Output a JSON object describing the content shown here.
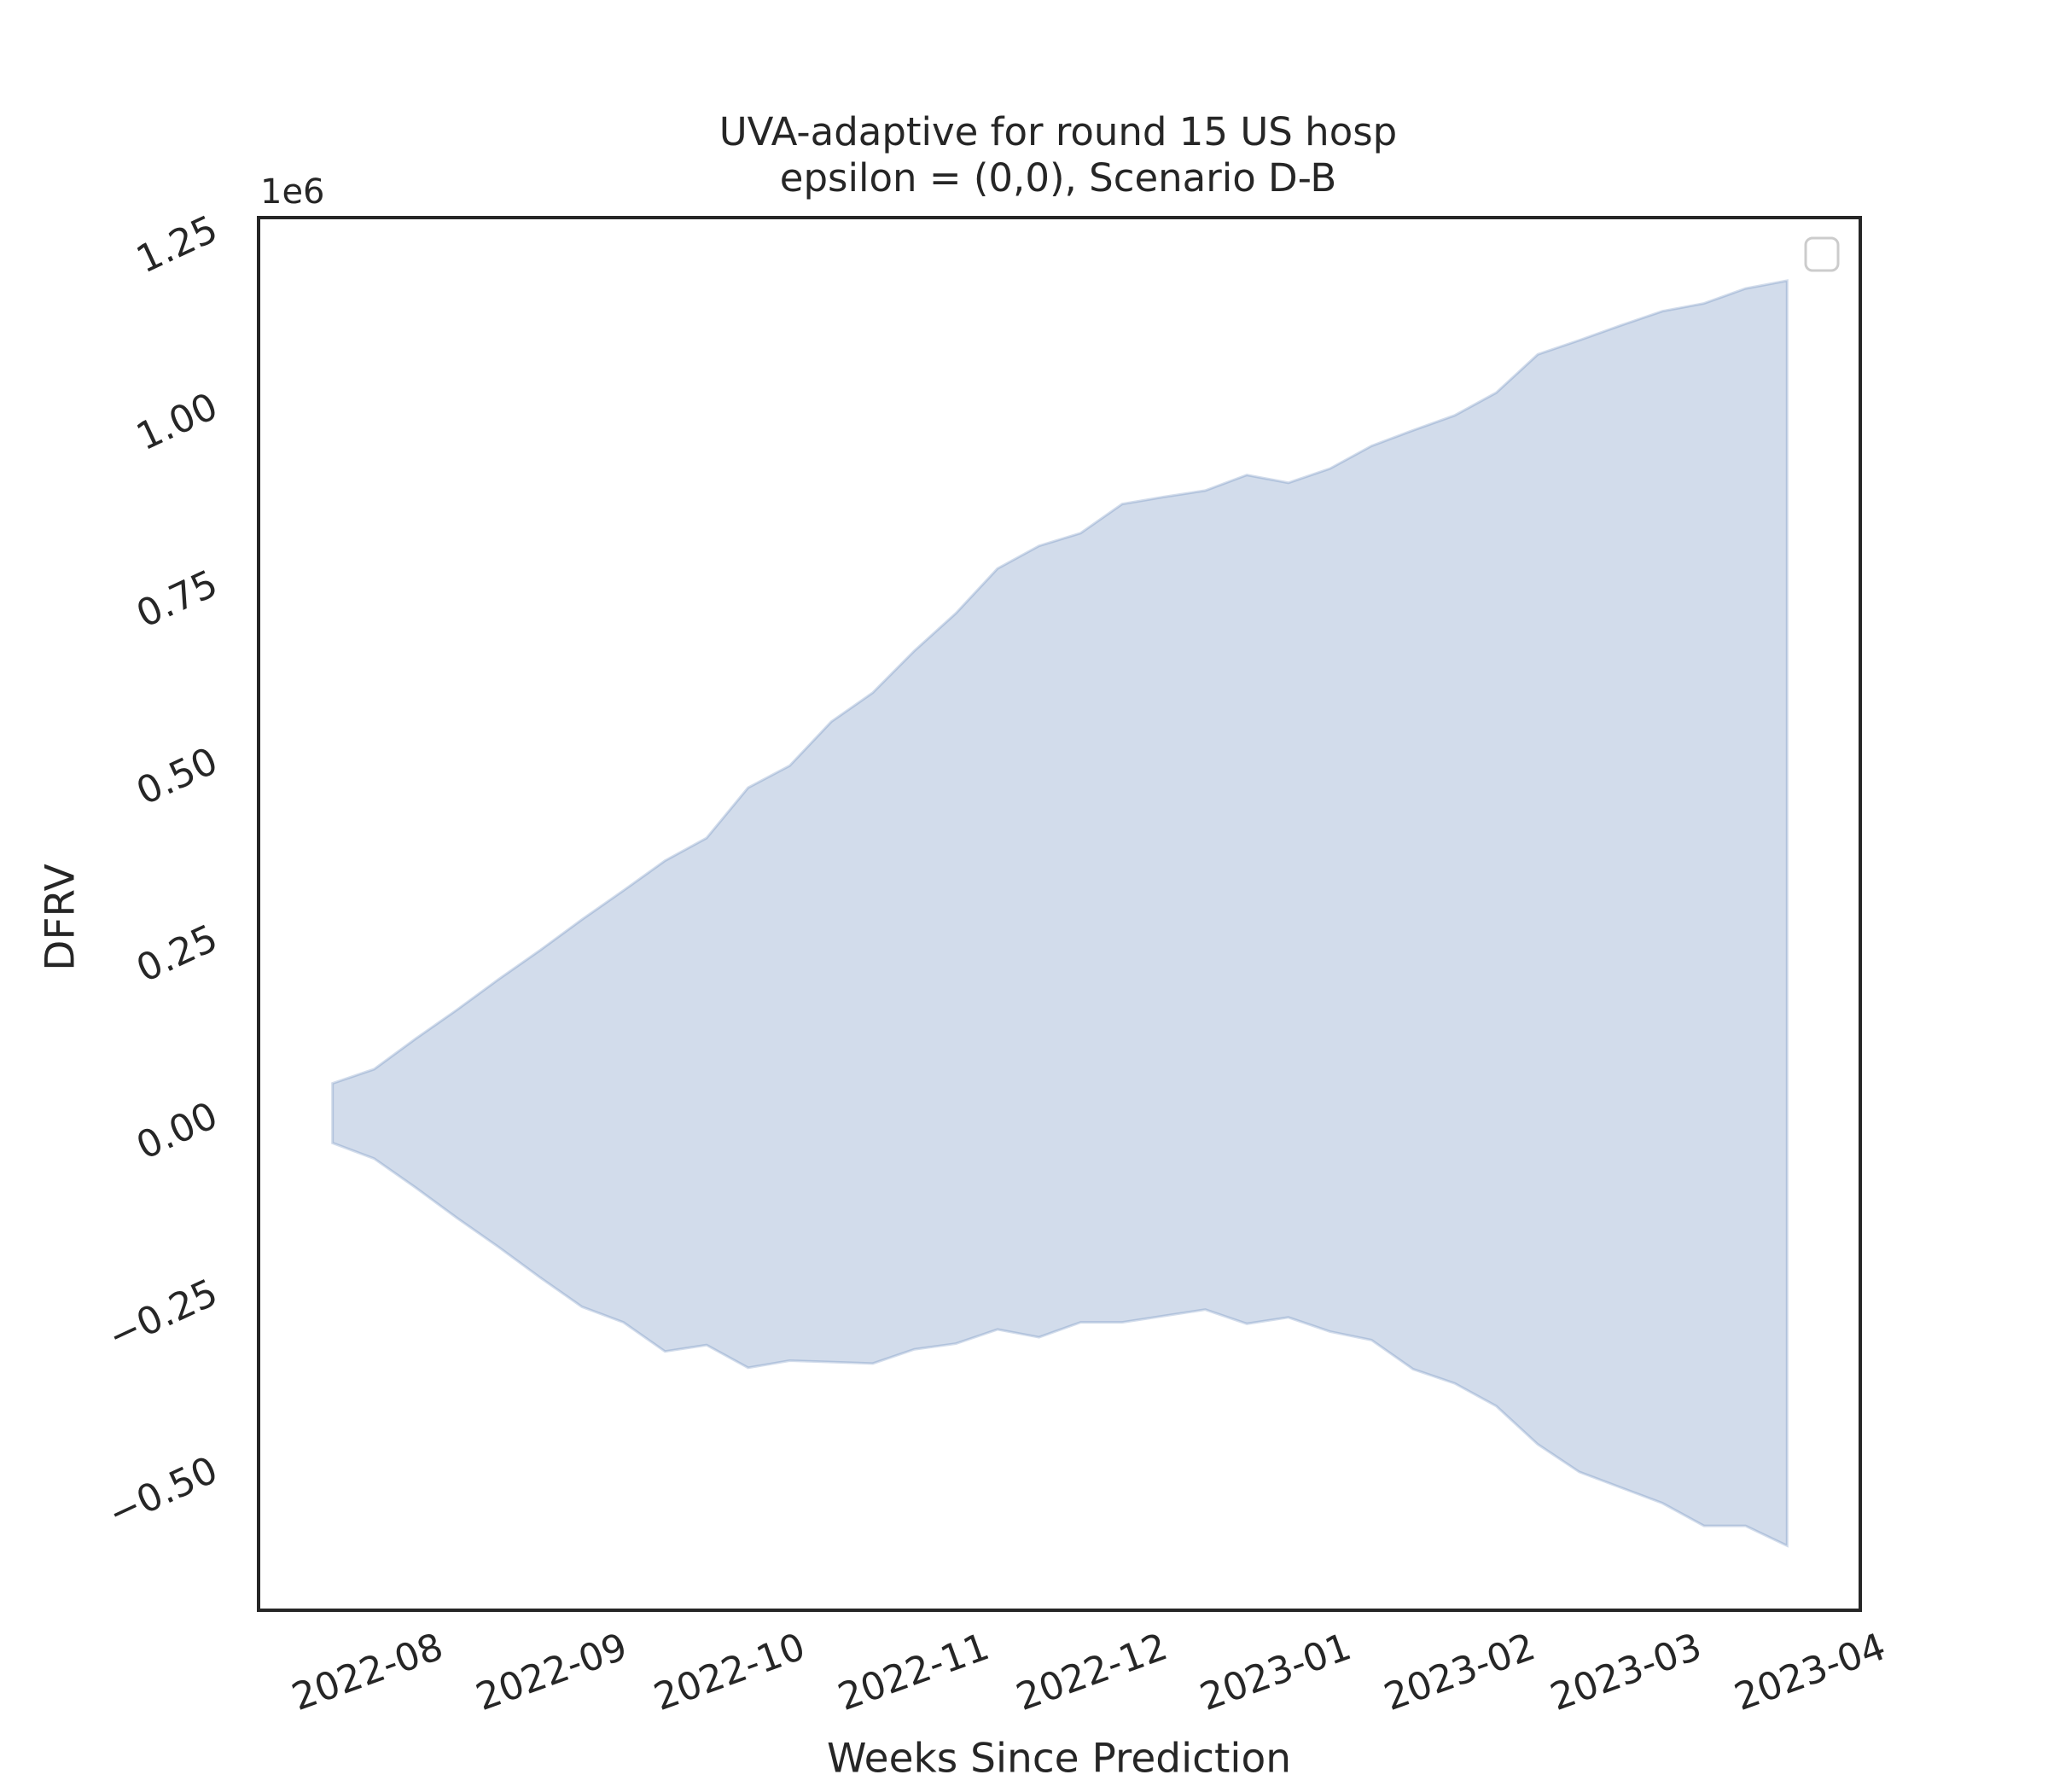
{
  "chart_data": {
    "type": "band",
    "title": "UVA-adaptive for round 15 US hosp",
    "subtitle": "epsilon = (0,0), Scenario D-B",
    "x_label": "Weeks Since Prediction",
    "y_label": "DFRV",
    "y_offset_label": "1e6",
    "color": "#4c72b0",
    "fill_alpha": 0.25,
    "legend": "upper right",
    "grid": false,
    "x": [
      0,
      1,
      2,
      3,
      4,
      5,
      6,
      7,
      8,
      9,
      10,
      11,
      12,
      13,
      14,
      15,
      16,
      17,
      18,
      19,
      20,
      21,
      22,
      23,
      24,
      25,
      26,
      27,
      28,
      29,
      30,
      31,
      32,
      33,
      34,
      35
    ],
    "upper": [
      45000,
      65000,
      108000,
      149000,
      192000,
      233000,
      276000,
      317000,
      359000,
      391000,
      462000,
      493000,
      555000,
      596000,
      655000,
      708000,
      771000,
      803000,
      821000,
      862000,
      872000,
      881000,
      903000,
      892000,
      912000,
      944000,
      966000,
      987000,
      1019000,
      1073000,
      1093000,
      1114000,
      1134000,
      1145000,
      1166000,
      1177000
    ],
    "lower": [
      -39000,
      -61000,
      -102000,
      -145000,
      -186000,
      -229000,
      -270000,
      -292000,
      -333000,
      -324000,
      -356000,
      -346000,
      -348000,
      -350000,
      -330000,
      -322000,
      -302000,
      -313000,
      -292000,
      -292000,
      -283000,
      -274000,
      -294000,
      -285000,
      -305000,
      -317000,
      -358000,
      -378000,
      -410000,
      -464000,
      -503000,
      -525000,
      -547000,
      -579000,
      -579000,
      -607000
    ],
    "xlim": [
      -1.78,
      36.76
    ],
    "xticks": [
      {
        "value": 0.86,
        "label": "2022-08"
      },
      {
        "value": 5.29,
        "label": "2022-09"
      },
      {
        "value": 9.57,
        "label": "2022-10"
      },
      {
        "value": 14,
        "label": "2022-11"
      },
      {
        "value": 18.29,
        "label": "2022-12"
      },
      {
        "value": 22.71,
        "label": "2023-01"
      },
      {
        "value": 27.14,
        "label": "2023-02"
      },
      {
        "value": 31.14,
        "label": "2023-03"
      },
      {
        "value": 35.57,
        "label": "2023-04"
      }
    ],
    "ylim": [
      -698000,
      1266000
    ],
    "yticks": [
      {
        "value": -500000,
        "label": "−0.50"
      },
      {
        "value": -250000,
        "label": "−0.25"
      },
      {
        "value": 0,
        "label": "0.00"
      },
      {
        "value": 250000,
        "label": "0.25"
      },
      {
        "value": 500000,
        "label": "0.50"
      },
      {
        "value": 750000,
        "label": "0.75"
      },
      {
        "value": 1000000,
        "label": "1.00"
      },
      {
        "value": 1250000,
        "label": "1.25"
      }
    ]
  }
}
